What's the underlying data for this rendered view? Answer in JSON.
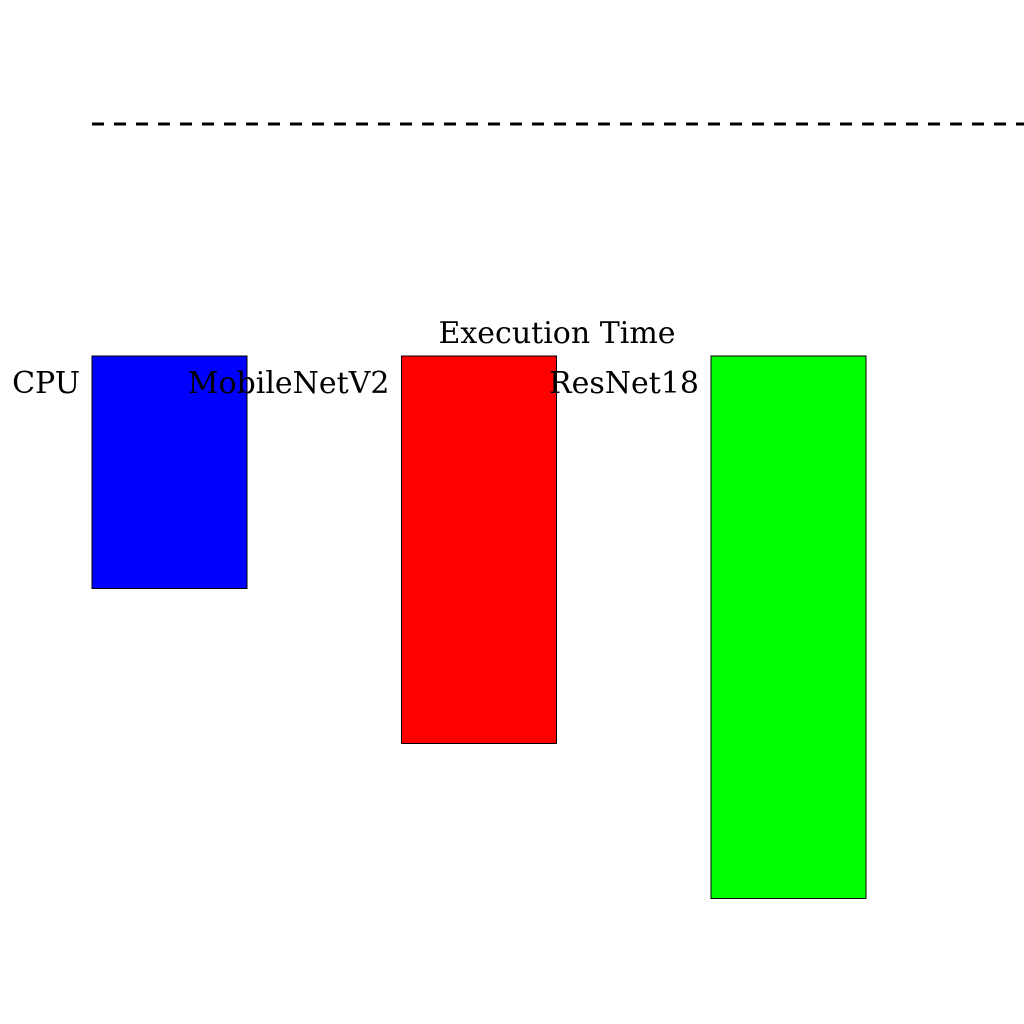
{
  "chart_data": {
    "type": "bar",
    "title": "Execution Time",
    "categories": [
      "CPU",
      "MobileNetV2",
      "ResNet18"
    ],
    "values": [
      3,
      5,
      7
    ],
    "colors": [
      "#0000ff",
      "#ff0000",
      "#00ff00"
    ],
    "direction": "downward",
    "reference_line": {
      "style": "dashed",
      "color": "#000000"
    },
    "grid": false,
    "legend": "none"
  }
}
